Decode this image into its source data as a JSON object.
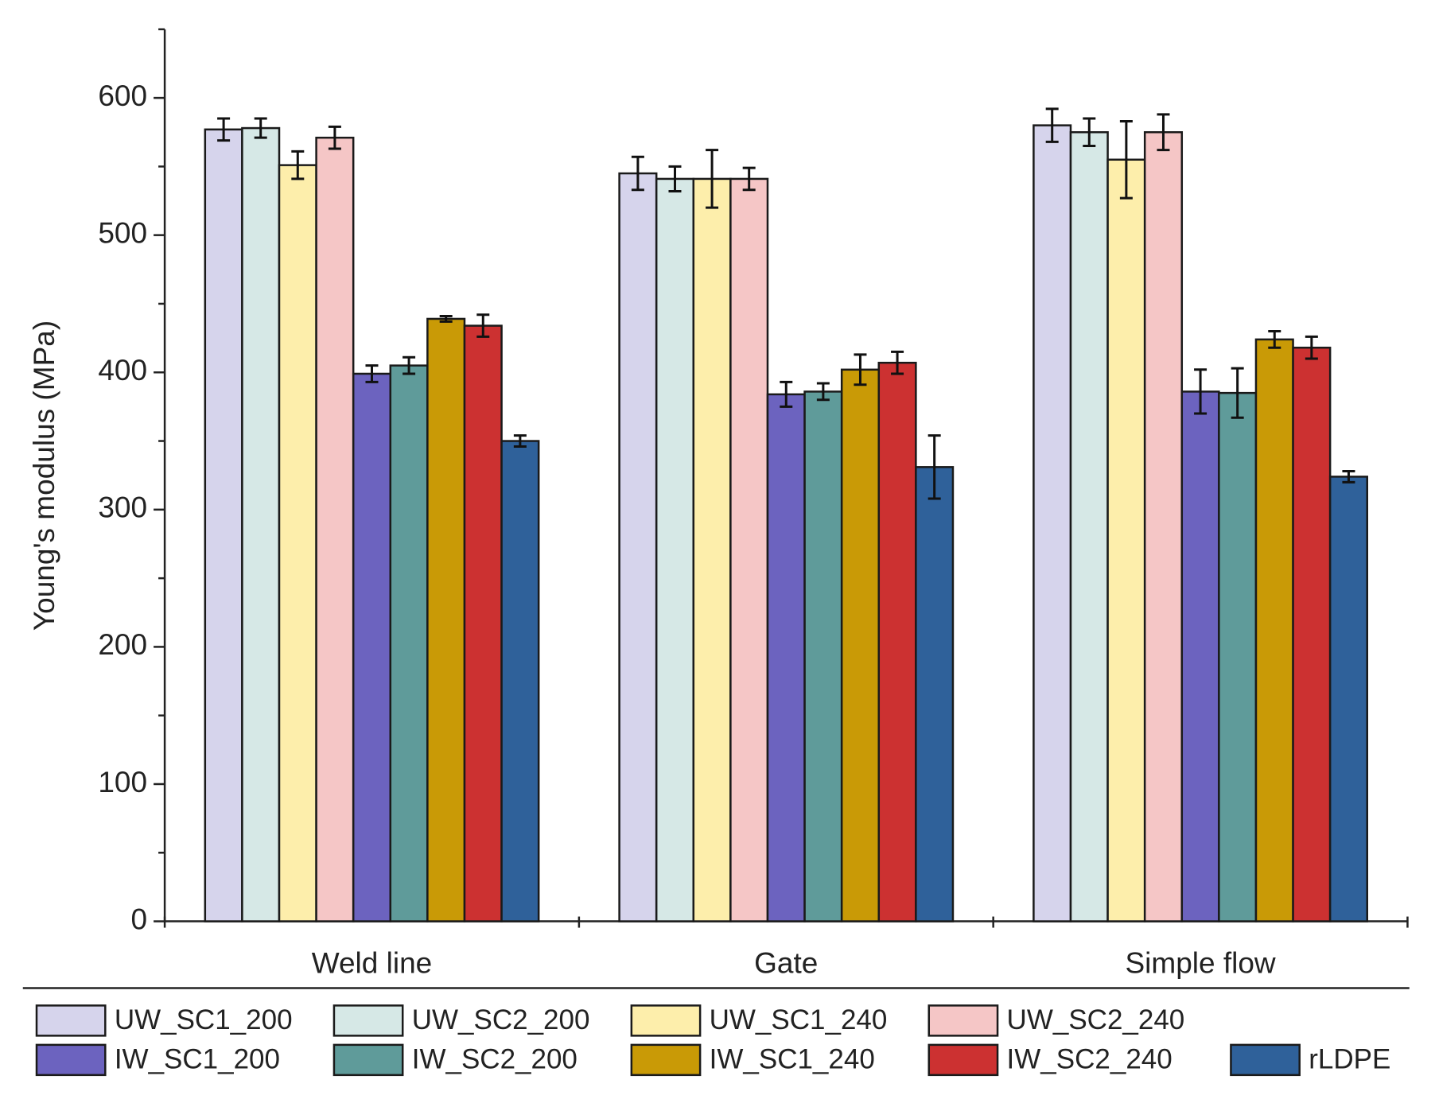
{
  "chart_data": {
    "type": "bar",
    "y_label": "Young's modulus (MPa)",
    "categories": [
      "Weld line",
      "Gate",
      "Simple flow"
    ],
    "ylim": [
      0,
      650
    ],
    "yticks": [
      0,
      100,
      200,
      300,
      400,
      500,
      600
    ],
    "yminorticks": [
      50,
      150,
      250,
      350,
      450,
      550,
      650
    ],
    "series": [
      {
        "name": "UW_SC1_200",
        "color": "#d6d4ec",
        "values": [
          577,
          545,
          580
        ],
        "errors": [
          8,
          12,
          12
        ]
      },
      {
        "name": "UW_SC2_200",
        "color": "#d6e8e6",
        "values": [
          578,
          541,
          575
        ],
        "errors": [
          7,
          9,
          10
        ]
      },
      {
        "name": "UW_SC1_240",
        "color": "#fdeeab",
        "values": [
          551,
          541,
          555
        ],
        "errors": [
          10,
          21,
          28
        ]
      },
      {
        "name": "UW_SC2_240",
        "color": "#f5c6c6",
        "values": [
          571,
          541,
          575
        ],
        "errors": [
          8,
          8,
          13
        ]
      },
      {
        "name": "IW_SC1_200",
        "color": "#6c63bf",
        "values": [
          399,
          384,
          386
        ],
        "errors": [
          6,
          9,
          16
        ]
      },
      {
        "name": "IW_SC2_200",
        "color": "#5f9b9a",
        "values": [
          405,
          386,
          385
        ],
        "errors": [
          6,
          6,
          18
        ]
      },
      {
        "name": "IW_SC1_240",
        "color": "#c99a06",
        "values": [
          439,
          402,
          424
        ],
        "errors": [
          2,
          11,
          6
        ]
      },
      {
        "name": "IW_SC2_240",
        "color": "#cc3131",
        "values": [
          434,
          407,
          418
        ],
        "errors": [
          8,
          8,
          8
        ]
      },
      {
        "name": "rLDPE",
        "color": "#2f619a",
        "values": [
          350,
          331,
          324
        ],
        "errors": [
          4,
          23,
          4
        ]
      }
    ]
  }
}
